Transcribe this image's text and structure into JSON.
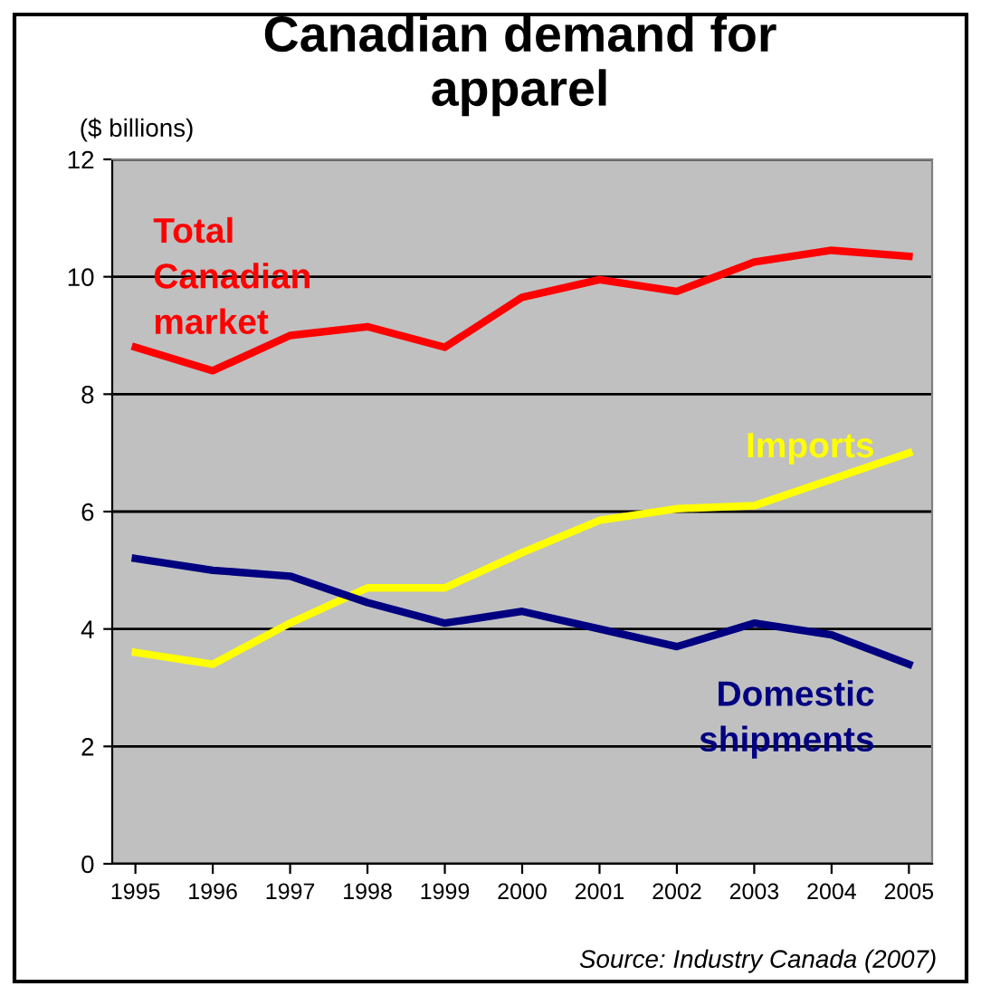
{
  "chart_data": {
    "type": "line",
    "title": "Canadian demand for\napparel",
    "ylabel": "($ billions)",
    "categories": [
      "1995",
      "1996",
      "1997",
      "1998",
      "1999",
      "2000",
      "2001",
      "2002",
      "2003",
      "2004",
      "2005"
    ],
    "series": [
      {
        "name": "Total\nCanadian\nmarket",
        "color": "#ff0000",
        "values": [
          8.8,
          8.4,
          9.0,
          9.15,
          8.8,
          9.65,
          9.95,
          9.75,
          10.25,
          10.45,
          10.35
        ]
      },
      {
        "name": "Imports",
        "color": "#ffff00",
        "values": [
          3.6,
          3.4,
          4.1,
          4.7,
          4.7,
          5.3,
          5.85,
          6.05,
          6.1,
          6.55,
          7.0
        ]
      },
      {
        "name": "Domestic\nshipments",
        "color": "#000080",
        "values": [
          5.2,
          5.0,
          4.9,
          4.45,
          4.1,
          4.3,
          4.0,
          3.7,
          4.1,
          3.9,
          3.4
        ]
      }
    ],
    "ylim": [
      0,
      12
    ],
    "yticks": [
      0,
      2,
      4,
      6,
      8,
      10,
      12
    ],
    "grid": "y",
    "marker": "none",
    "line_style": "solid",
    "annotations": [
      "Source: Industry Canada (2007)"
    ]
  }
}
